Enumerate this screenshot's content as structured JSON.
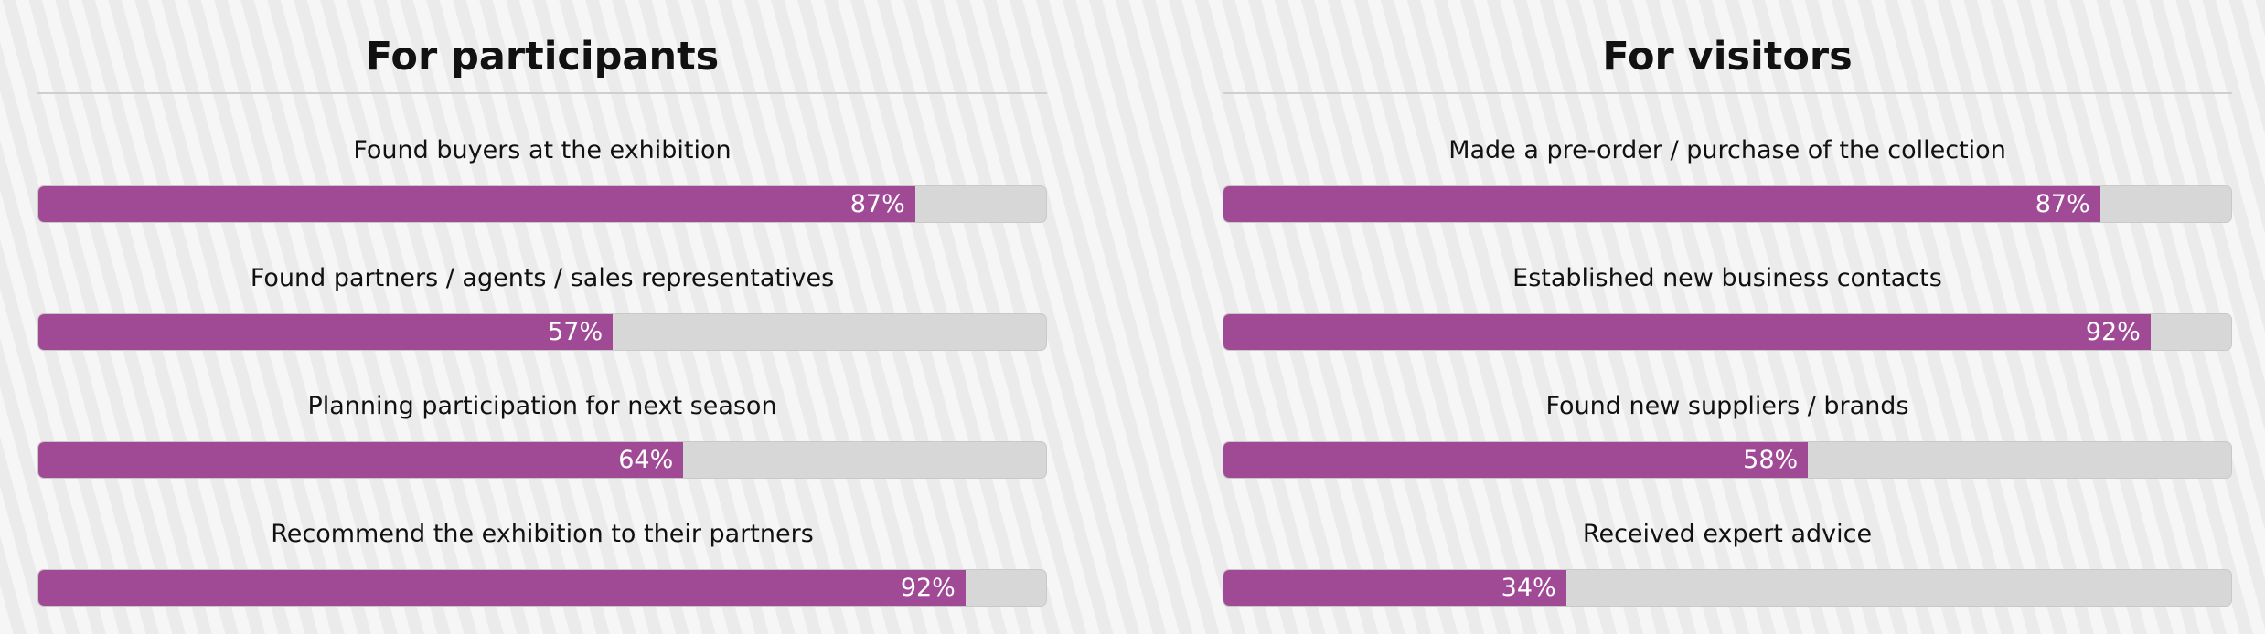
{
  "chart_data": [
    {
      "type": "bar",
      "orientation": "horizontal",
      "title": "For participants",
      "xlim": [
        0,
        100
      ],
      "unit": "%",
      "categories": [
        "Found buyers at the exhibition",
        "Found partners / agents / sales representatives",
        "Planning participation for next season",
        "Recommend the exhibition to their partners"
      ],
      "values": [
        87,
        57,
        64,
        92
      ],
      "labels": [
        "87%",
        "57%",
        "64%",
        "92%"
      ]
    },
    {
      "type": "bar",
      "orientation": "horizontal",
      "title": "For visitors",
      "xlim": [
        0,
        100
      ],
      "unit": "%",
      "categories": [
        "Made a pre-order / purchase of the collection",
        "Established new business contacts",
        "Found new suppliers / brands",
        "Received expert advice"
      ],
      "values": [
        87,
        92,
        58,
        34
      ],
      "labels": [
        "87%",
        "92%",
        "58%",
        "34%"
      ]
    }
  ],
  "colors": {
    "bar_fill": "#a04a96",
    "bar_track": "#d7d7d7",
    "divider": "#cfcfcf",
    "value_text": "#ffffff"
  }
}
